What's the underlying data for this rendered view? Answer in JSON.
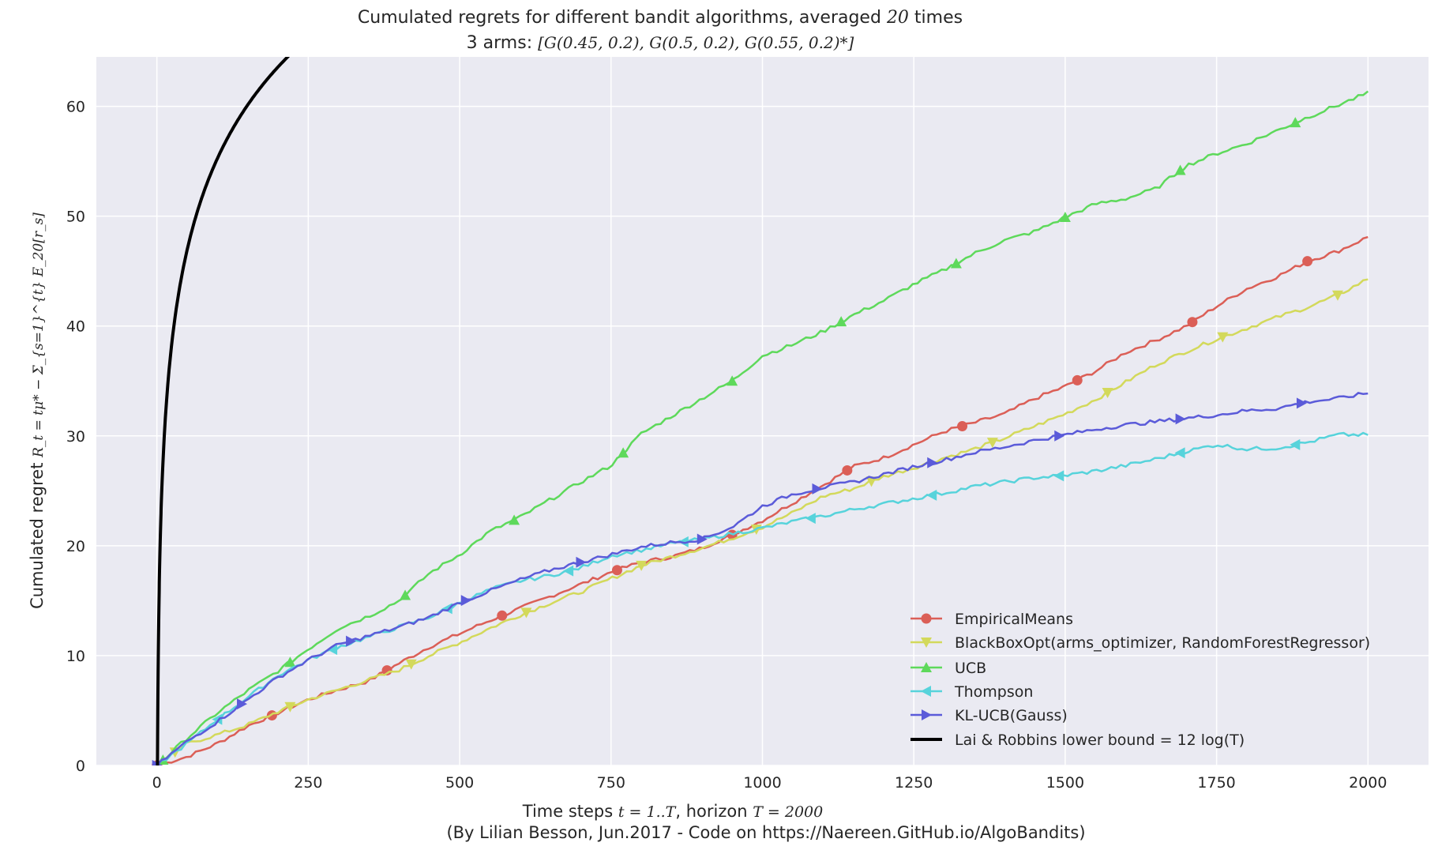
{
  "title_line1_prefix": "Cumulated regrets for different bandit algorithms, averaged ",
  "title_line1_num": "20",
  "title_line1_suffix": " times",
  "title_line2_prefix": "3 arms: ",
  "title_line2_math": "[G(0.45, 0.2), G(0.5, 0.2), G(0.55, 0.2)*]",
  "xlabel_prefix": "Time steps ",
  "xlabel_math1": "t = 1..T",
  "xlabel_mid": ", horizon ",
  "xlabel_math2": "T = 2000",
  "credit": "(By Lilian Besson, Jun.2017 - Code on https://Naereen.GitHub.io/AlgoBandits)",
  "ylabel_prefix": "Cumulated regret ",
  "ylabel_math": "R_t = tμ* − Σ_{s=1}^{t} E_20[r_s]",
  "colors": {
    "background": "#eaeaf2",
    "grid": "#ffffff",
    "EmpiricalMeans": "#db5f57",
    "BlackBoxOpt": "#d3d95b",
    "UCB": "#5ed95b",
    "Thompson": "#57d3db",
    "KLUCB": "#5b5bd9",
    "LaiRobbins": "#000000"
  },
  "chart_data": {
    "type": "line",
    "xlim": [
      -100,
      2100
    ],
    "ylim": [
      0,
      64.5
    ],
    "xticks": [
      0,
      250,
      500,
      750,
      1000,
      1250,
      1500,
      1750,
      2000
    ],
    "yticks": [
      0,
      10,
      20,
      30,
      40,
      50,
      60
    ],
    "grid": true,
    "legend_position": "lower-right",
    "series": [
      {
        "name": "EmpiricalMeans",
        "marker": "circle",
        "points": [
          [
            0,
            0
          ],
          [
            50,
            0.8
          ],
          [
            100,
            2.0
          ],
          [
            150,
            3.6
          ],
          [
            200,
            4.8
          ],
          [
            250,
            6.0
          ],
          [
            300,
            6.9
          ],
          [
            350,
            7.7
          ],
          [
            400,
            9.3
          ],
          [
            450,
            10.8
          ],
          [
            500,
            12.0
          ],
          [
            550,
            13.2
          ],
          [
            600,
            14.3
          ],
          [
            650,
            15.4
          ],
          [
            700,
            16.5
          ],
          [
            750,
            17.6
          ],
          [
            800,
            18.5
          ],
          [
            850,
            19.0
          ],
          [
            900,
            19.8
          ],
          [
            950,
            21.0
          ],
          [
            1000,
            22.3
          ],
          [
            1050,
            23.9
          ],
          [
            1100,
            25.5
          ],
          [
            1150,
            27.2
          ],
          [
            1200,
            28.0
          ],
          [
            1250,
            29.2
          ],
          [
            1300,
            30.4
          ],
          [
            1350,
            31.2
          ],
          [
            1400,
            32.0
          ],
          [
            1450,
            33.4
          ],
          [
            1500,
            34.5
          ],
          [
            1550,
            35.9
          ],
          [
            1600,
            37.6
          ],
          [
            1650,
            38.7
          ],
          [
            1700,
            40.0
          ],
          [
            1750,
            41.8
          ],
          [
            1800,
            43.4
          ],
          [
            1850,
            44.5
          ],
          [
            1900,
            45.9
          ],
          [
            1950,
            46.8
          ],
          [
            2000,
            48.1
          ]
        ],
        "markers_x": [
          0,
          190,
          380,
          570,
          760,
          950,
          1140,
          1330,
          1520,
          1710,
          1900
        ]
      },
      {
        "name": "BlackBoxOpt(arms_optimizer, RandomForestRegressor)",
        "marker": "triangle-down",
        "points": [
          [
            0,
            0
          ],
          [
            50,
            2.0
          ],
          [
            100,
            2.8
          ],
          [
            150,
            3.7
          ],
          [
            200,
            4.9
          ],
          [
            250,
            6.0
          ],
          [
            300,
            6.9
          ],
          [
            350,
            7.8
          ],
          [
            400,
            8.7
          ],
          [
            450,
            10.0
          ],
          [
            500,
            11.2
          ],
          [
            550,
            12.5
          ],
          [
            600,
            13.7
          ],
          [
            650,
            14.8
          ],
          [
            700,
            15.8
          ],
          [
            750,
            17.0
          ],
          [
            800,
            18.2
          ],
          [
            850,
            19.0
          ],
          [
            900,
            19.8
          ],
          [
            950,
            20.7
          ],
          [
            1000,
            21.7
          ],
          [
            1050,
            23.0
          ],
          [
            1100,
            24.5
          ],
          [
            1150,
            25.2
          ],
          [
            1200,
            26.3
          ],
          [
            1250,
            27.1
          ],
          [
            1300,
            28.0
          ],
          [
            1350,
            28.8
          ],
          [
            1400,
            29.8
          ],
          [
            1450,
            30.9
          ],
          [
            1500,
            32.0
          ],
          [
            1550,
            33.3
          ],
          [
            1600,
            34.9
          ],
          [
            1650,
            36.5
          ],
          [
            1700,
            37.7
          ],
          [
            1750,
            38.8
          ],
          [
            1800,
            39.8
          ],
          [
            1850,
            40.8
          ],
          [
            1900,
            41.7
          ],
          [
            1950,
            42.8
          ],
          [
            2000,
            44.3
          ]
        ],
        "markers_x": [
          30,
          220,
          420,
          610,
          800,
          990,
          1180,
          1380,
          1570,
          1760,
          1950
        ]
      },
      {
        "name": "UCB",
        "marker": "triangle-up",
        "points": [
          [
            0,
            0
          ],
          [
            50,
            2.5
          ],
          [
            100,
            4.8
          ],
          [
            150,
            6.8
          ],
          [
            200,
            8.6
          ],
          [
            250,
            10.6
          ],
          [
            300,
            12.5
          ],
          [
            350,
            13.6
          ],
          [
            400,
            15.0
          ],
          [
            450,
            17.5
          ],
          [
            500,
            19.2
          ],
          [
            550,
            21.3
          ],
          [
            600,
            22.6
          ],
          [
            650,
            24.2
          ],
          [
            700,
            25.8
          ],
          [
            750,
            27.3
          ],
          [
            800,
            30.2
          ],
          [
            850,
            31.8
          ],
          [
            900,
            33.4
          ],
          [
            950,
            35.0
          ],
          [
            1000,
            37.3
          ],
          [
            1050,
            38.3
          ],
          [
            1100,
            39.5
          ],
          [
            1150,
            41.0
          ],
          [
            1200,
            42.3
          ],
          [
            1250,
            43.8
          ],
          [
            1300,
            45.1
          ],
          [
            1350,
            46.6
          ],
          [
            1400,
            47.8
          ],
          [
            1450,
            48.6
          ],
          [
            1500,
            49.9
          ],
          [
            1550,
            51.1
          ],
          [
            1600,
            51.6
          ],
          [
            1650,
            52.5
          ],
          [
            1700,
            54.6
          ],
          [
            1750,
            55.7
          ],
          [
            1800,
            56.6
          ],
          [
            1850,
            57.8
          ],
          [
            1900,
            59.0
          ],
          [
            1950,
            60.1
          ],
          [
            2000,
            61.2
          ]
        ],
        "markers_x": [
          10,
          220,
          410,
          590,
          770,
          950,
          1130,
          1320,
          1500,
          1690,
          1880
        ]
      },
      {
        "name": "Thompson",
        "marker": "triangle-left",
        "points": [
          [
            0,
            0
          ],
          [
            50,
            2.0
          ],
          [
            100,
            4.2
          ],
          [
            150,
            6.2
          ],
          [
            200,
            8.2
          ],
          [
            250,
            9.6
          ],
          [
            300,
            10.8
          ],
          [
            350,
            11.7
          ],
          [
            400,
            12.6
          ],
          [
            450,
            13.5
          ],
          [
            500,
            14.8
          ],
          [
            550,
            16.0
          ],
          [
            600,
            16.8
          ],
          [
            650,
            17.3
          ],
          [
            700,
            18.0
          ],
          [
            750,
            19.1
          ],
          [
            800,
            19.6
          ],
          [
            850,
            20.2
          ],
          [
            900,
            20.6
          ],
          [
            950,
            21.1
          ],
          [
            1000,
            21.6
          ],
          [
            1050,
            22.2
          ],
          [
            1100,
            22.7
          ],
          [
            1150,
            23.3
          ],
          [
            1200,
            23.8
          ],
          [
            1250,
            24.3
          ],
          [
            1300,
            24.8
          ],
          [
            1350,
            25.4
          ],
          [
            1400,
            25.8
          ],
          [
            1450,
            26.2
          ],
          [
            1500,
            26.4
          ],
          [
            1550,
            26.8
          ],
          [
            1600,
            27.3
          ],
          [
            1650,
            27.9
          ],
          [
            1700,
            28.6
          ],
          [
            1750,
            29.2
          ],
          [
            1800,
            28.8
          ],
          [
            1850,
            28.9
          ],
          [
            1900,
            29.4
          ],
          [
            1950,
            30.1
          ],
          [
            2000,
            30.1
          ]
        ],
        "markers_x": [
          100,
          290,
          480,
          680,
          870,
          1080,
          1280,
          1490,
          1690,
          1880
        ]
      },
      {
        "name": "KL-UCB(Gauss)",
        "marker": "triangle-right",
        "points": [
          [
            0,
            0
          ],
          [
            50,
            2.2
          ],
          [
            100,
            4.0
          ],
          [
            150,
            6.0
          ],
          [
            200,
            8.0
          ],
          [
            250,
            9.6
          ],
          [
            300,
            11.0
          ],
          [
            350,
            11.8
          ],
          [
            400,
            12.6
          ],
          [
            450,
            13.5
          ],
          [
            500,
            14.8
          ],
          [
            550,
            15.9
          ],
          [
            600,
            16.9
          ],
          [
            650,
            17.8
          ],
          [
            700,
            18.5
          ],
          [
            750,
            19.2
          ],
          [
            800,
            19.9
          ],
          [
            850,
            20.3
          ],
          [
            900,
            20.6
          ],
          [
            950,
            21.7
          ],
          [
            1000,
            23.6
          ],
          [
            1050,
            24.7
          ],
          [
            1100,
            25.3
          ],
          [
            1150,
            25.8
          ],
          [
            1200,
            26.5
          ],
          [
            1250,
            27.2
          ],
          [
            1300,
            27.8
          ],
          [
            1350,
            28.5
          ],
          [
            1400,
            29.0
          ],
          [
            1450,
            29.6
          ],
          [
            1500,
            30.1
          ],
          [
            1550,
            30.6
          ],
          [
            1600,
            31.0
          ],
          [
            1650,
            31.3
          ],
          [
            1700,
            31.6
          ],
          [
            1750,
            31.9
          ],
          [
            1800,
            32.3
          ],
          [
            1850,
            32.5
          ],
          [
            1900,
            33.1
          ],
          [
            1950,
            33.4
          ],
          [
            2000,
            33.9
          ]
        ],
        "markers_x": [
          0,
          140,
          320,
          510,
          700,
          900,
          1090,
          1280,
          1490,
          1690,
          1890
        ]
      },
      {
        "name": "Lai & Robbins lower bound = 12 log(T)",
        "marker": "none",
        "function": "12*ln(t)"
      }
    ]
  }
}
